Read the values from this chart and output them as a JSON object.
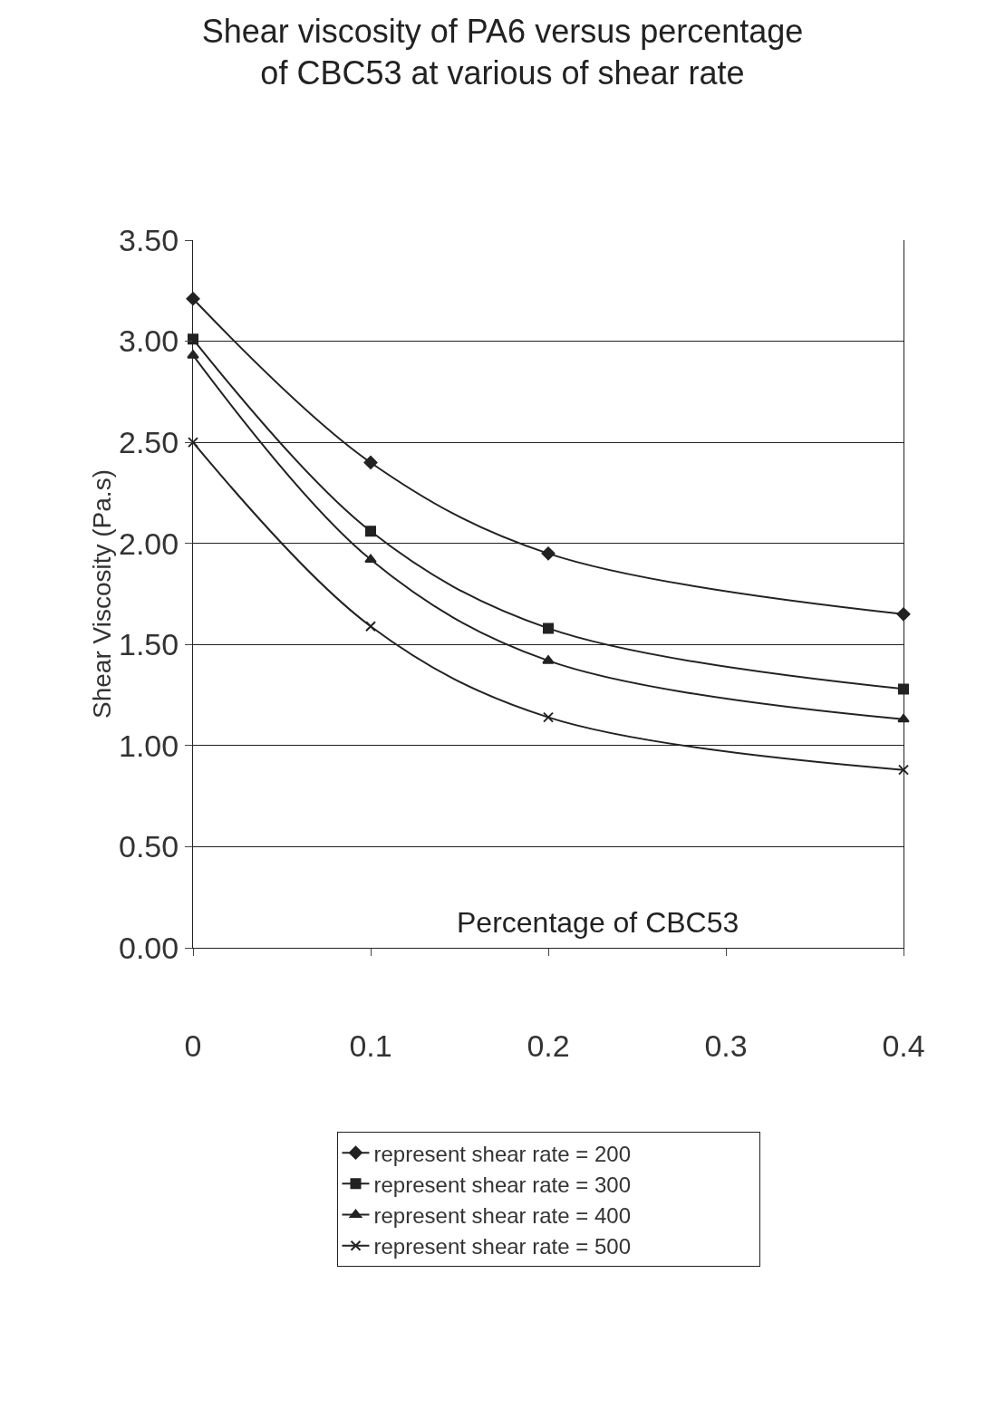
{
  "chart_data": {
    "type": "line",
    "title": "Shear viscosity of PA6 versus percentage of CBC53 at various of shear rate",
    "xlabel": "Percentage of CBC53",
    "ylabel": "Shear Viscosity (Pa.s)",
    "x": [
      0,
      0.1,
      0.2,
      0.4
    ],
    "series": [
      {
        "name": "represent shear rate = 200",
        "color": "#222222",
        "marker": "diamond",
        "values": [
          3.21,
          2.4,
          1.95,
          1.65
        ]
      },
      {
        "name": "represent shear rate = 300",
        "color": "#222222",
        "marker": "square",
        "values": [
          3.01,
          2.06,
          1.58,
          1.28
        ]
      },
      {
        "name": "represent shear rate = 400",
        "color": "#222222",
        "marker": "triangle",
        "values": [
          2.93,
          1.92,
          1.42,
          1.13
        ]
      },
      {
        "name": "represent shear rate = 500",
        "color": "#222222",
        "marker": "cross",
        "values": [
          2.5,
          1.59,
          1.14,
          0.88
        ]
      }
    ],
    "xlim": [
      0,
      0.4
    ],
    "xticks": [
      0,
      0.1,
      0.2,
      0.3,
      0.4
    ],
    "ylim": [
      0,
      3.5
    ],
    "yticks": [
      {
        "value": 0,
        "label": "0.00"
      },
      {
        "value": 0.5,
        "label": "0.50"
      },
      {
        "value": 1,
        "label": "1.00"
      },
      {
        "value": 1.5,
        "label": "1.50"
      },
      {
        "value": 2,
        "label": "2.00"
      },
      {
        "value": 2.5,
        "label": "2.50"
      },
      {
        "value": 3,
        "label": "3.00"
      },
      {
        "value": 3.5,
        "label": "3.50"
      }
    ],
    "grid": "y",
    "legend": "bottom",
    "line_style": "solid"
  }
}
